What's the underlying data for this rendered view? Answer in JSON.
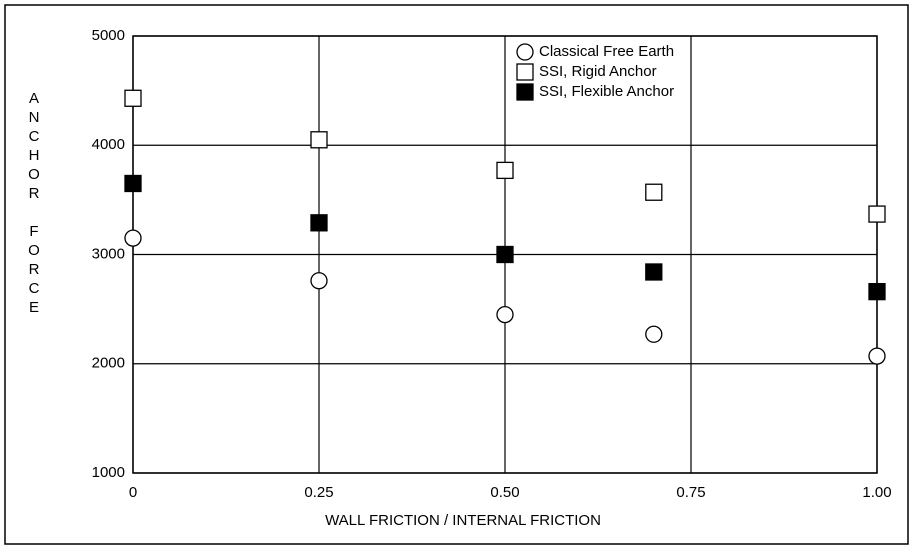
{
  "chart_data": {
    "type": "scatter",
    "xlabel": "WALL FRICTION / INTERNAL FRICTION",
    "ylabel": "ANCHOR FORCE",
    "xlim": [
      0,
      1
    ],
    "ylim": [
      1000,
      5000
    ],
    "xticks": [
      0,
      0.25,
      {
        "value": 0.5,
        "label": "0.50"
      },
      0.75,
      {
        "value": 1,
        "label": "1.00"
      }
    ],
    "yticks": [
      1000,
      2000,
      3000,
      4000,
      5000
    ],
    "grid": true,
    "legend": "upper right",
    "series": [
      {
        "name": "Classical Free Earth",
        "color": "#000000",
        "marker": "circle-open",
        "x": [
          0,
          0.25,
          0.5,
          0.7,
          1.0
        ],
        "values": [
          3150,
          2760,
          2450,
          2270,
          2070
        ]
      },
      {
        "name": "SSI, Rigid Anchor",
        "color": "#000000",
        "marker": "square-open",
        "x": [
          0,
          0.25,
          0.5,
          0.7,
          1.0
        ],
        "values": [
          4430,
          4050,
          3770,
          3570,
          3370
        ]
      },
      {
        "name": "SSI, Flexible Anchor",
        "color": "#000000",
        "marker": "square-filled",
        "x": [
          0,
          0.25,
          0.5,
          0.7,
          1.0
        ],
        "values": [
          3650,
          3290,
          3000,
          2840,
          2660
        ]
      }
    ]
  }
}
